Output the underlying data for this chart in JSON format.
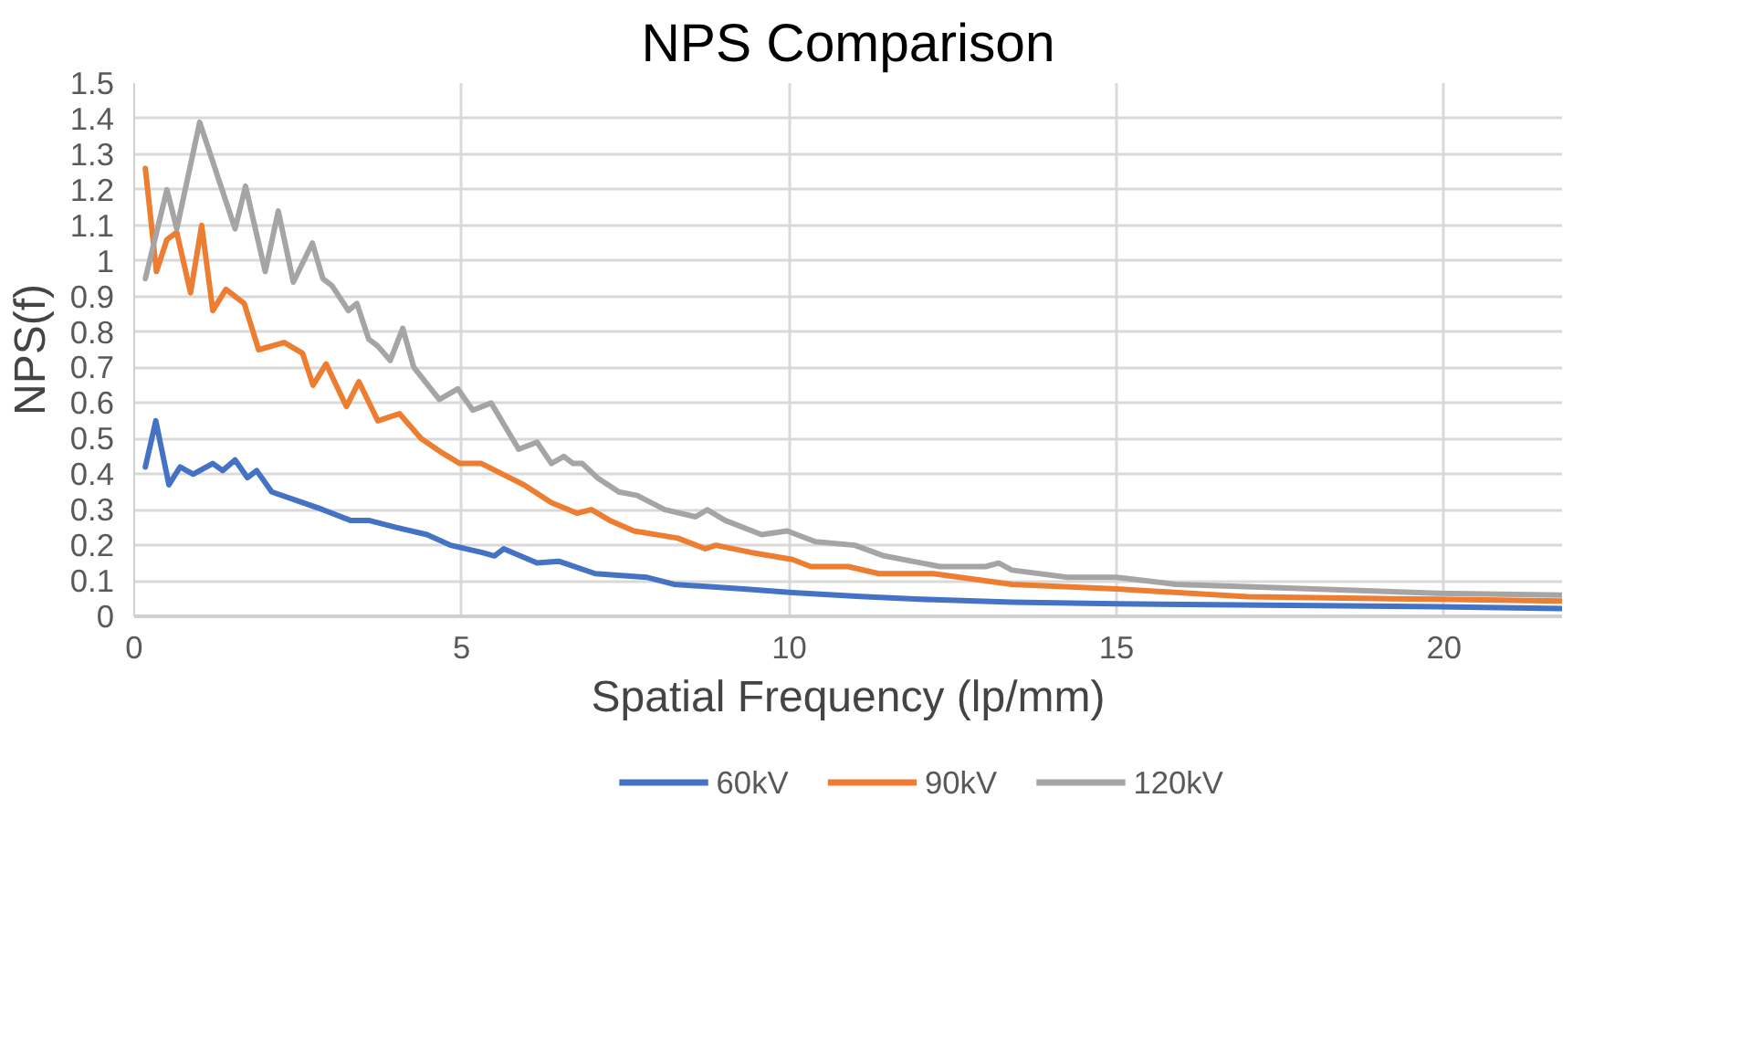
{
  "chart_data": {
    "type": "line",
    "title": "NPS Comparison",
    "xlabel": "Spatial Frequency (lp/mm)",
    "ylabel": "NPS(f)",
    "xlim": [
      0,
      21.8
    ],
    "xticks": [
      0,
      5,
      10,
      15,
      20
    ],
    "ylim": [
      0,
      1.5
    ],
    "yticks": [
      0,
      0.1,
      0.2,
      0.3,
      0.4,
      0.5,
      0.6,
      0.7,
      0.8,
      0.9,
      1,
      1.1,
      1.2,
      1.3,
      1.4,
      1.5
    ],
    "grid": true,
    "legend": "bottom",
    "line_style": "solid",
    "marker": "none",
    "series": [
      {
        "name": "60kV",
        "color": "#4472c4",
        "x": [
          0.17,
          0.33,
          0.53,
          0.7,
          0.9,
          1.2,
          1.35,
          1.54,
          1.73,
          1.87,
          2.1,
          2.57,
          2.88,
          3.3,
          3.58,
          4.0,
          4.47,
          4.83,
          5.3,
          5.5,
          5.64,
          6.15,
          6.48,
          7.04,
          7.82,
          8.24,
          9.3,
          10.05,
          11.09,
          12.0,
          13.4,
          15,
          19.9,
          21.8
        ],
        "values": [
          0.42,
          0.55,
          0.37,
          0.42,
          0.4,
          0.43,
          0.41,
          0.44,
          0.39,
          0.41,
          0.35,
          0.32,
          0.3,
          0.27,
          0.27,
          0.25,
          0.23,
          0.2,
          0.18,
          0.17,
          0.19,
          0.15,
          0.155,
          0.12,
          0.11,
          0.09,
          0.077,
          0.067,
          0.056,
          0.048,
          0.04,
          0.035,
          0.027,
          0.022
        ]
      },
      {
        "name": "90kV",
        "color": "#ed7d31",
        "x": [
          0.17,
          0.34,
          0.5,
          0.65,
          0.86,
          1.03,
          1.2,
          1.4,
          1.68,
          1.9,
          2.29,
          2.57,
          2.73,
          2.93,
          3.24,
          3.43,
          3.72,
          4.05,
          4.38,
          4.7,
          4.97,
          5.3,
          5.73,
          5.95,
          6.37,
          6.76,
          6.98,
          7.26,
          7.63,
          8.3,
          8.72,
          8.88,
          9.41,
          10.05,
          10.33,
          10.9,
          11.37,
          12.2,
          13.4,
          15,
          17.0,
          19.9,
          21.8
        ],
        "values": [
          1.26,
          0.97,
          1.06,
          1.08,
          0.91,
          1.1,
          0.86,
          0.92,
          0.88,
          0.75,
          0.77,
          0.74,
          0.65,
          0.71,
          0.59,
          0.66,
          0.55,
          0.57,
          0.5,
          0.46,
          0.43,
          0.43,
          0.39,
          0.37,
          0.32,
          0.29,
          0.3,
          0.27,
          0.24,
          0.22,
          0.19,
          0.2,
          0.18,
          0.16,
          0.14,
          0.14,
          0.12,
          0.12,
          0.09,
          0.077,
          0.055,
          0.048,
          0.043
        ]
      },
      {
        "name": "120kV",
        "color": "#a5a5a5",
        "x": [
          0.17,
          0.5,
          0.65,
          1.0,
          1.54,
          1.7,
          2.0,
          2.2,
          2.43,
          2.72,
          2.88,
          3.02,
          3.27,
          3.4,
          3.58,
          3.72,
          3.91,
          4.1,
          4.27,
          4.66,
          4.94,
          5.17,
          5.45,
          5.87,
          6.15,
          6.37,
          6.56,
          6.7,
          6.84,
          7.07,
          7.4,
          7.68,
          8.1,
          8.57,
          8.75,
          9.02,
          9.58,
          9.97,
          10.4,
          11.0,
          11.45,
          12.3,
          13.0,
          13.2,
          13.4,
          14.25,
          15,
          15.9,
          17.5,
          19.9,
          21.8
        ],
        "values": [
          0.95,
          1.2,
          1.09,
          1.39,
          1.09,
          1.21,
          0.97,
          1.14,
          0.94,
          1.05,
          0.95,
          0.93,
          0.86,
          0.88,
          0.78,
          0.76,
          0.72,
          0.81,
          0.7,
          0.61,
          0.64,
          0.58,
          0.6,
          0.47,
          0.49,
          0.43,
          0.45,
          0.43,
          0.43,
          0.39,
          0.35,
          0.34,
          0.3,
          0.28,
          0.3,
          0.27,
          0.23,
          0.24,
          0.21,
          0.2,
          0.17,
          0.14,
          0.14,
          0.15,
          0.13,
          0.11,
          0.11,
          0.09,
          0.08,
          0.065,
          0.06
        ]
      }
    ]
  }
}
